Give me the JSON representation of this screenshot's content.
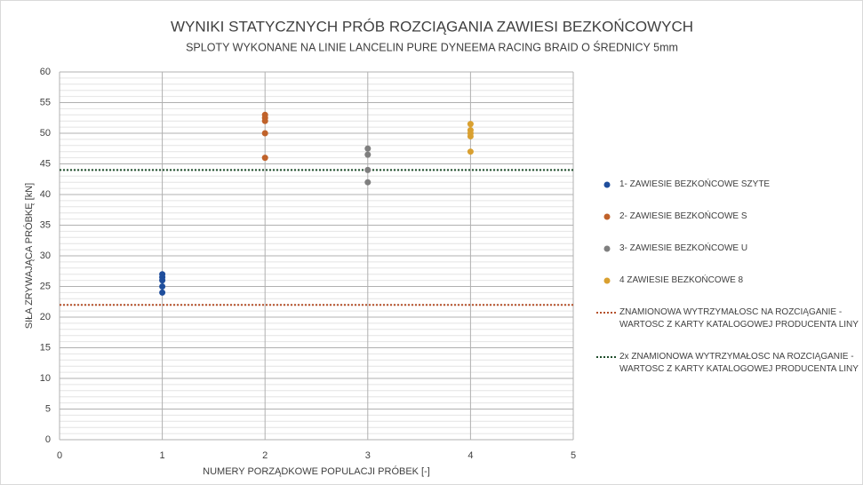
{
  "chart_data": {
    "type": "scatter",
    "title": "WYNIKI STATYCZNYCH PRÓB ROZCIĄGANIA ZAWIESI BEZKOŃCOWYCH",
    "subtitle": "SPLOTY WYKONANE NA LINIE LANCELIN PURE DYNEEMA RACING BRAID O ŚREDNICY 5mm",
    "xlabel": "NUMERY PORZĄDKOWE POPULACJI PRÓBEK [-]",
    "ylabel": "SIŁA ZRYWAJĄCA PRÓBKĘ [kN]",
    "xlim": [
      0,
      5
    ],
    "xticks": [
      0,
      1,
      2,
      3,
      4,
      5
    ],
    "ylim": [
      0,
      60
    ],
    "yticks": [
      0,
      5,
      10,
      15,
      20,
      25,
      30,
      35,
      40,
      45,
      50,
      55,
      60
    ],
    "minor_grid_step": 1,
    "grid": true,
    "legend": "right",
    "series": [
      {
        "name": "1- ZAWIESIE BEZKOŃCOWE SZYTE",
        "color": "#1f4e9c",
        "x": [
          1,
          1,
          1,
          1,
          1
        ],
        "values": [
          27,
          26.5,
          26,
          25,
          24
        ]
      },
      {
        "name": "2- ZAWIESIE BEZKOŃCOWE S",
        "color": "#c0622a",
        "x": [
          2,
          2,
          2,
          2,
          2
        ],
        "values": [
          53,
          52.5,
          52,
          50,
          46
        ]
      },
      {
        "name": "3- ZAWIESIE BEZKOŃCOWE U",
        "color": "#7f7f7f",
        "x": [
          3,
          3,
          3,
          3
        ],
        "values": [
          47.5,
          46.5,
          44,
          42
        ]
      },
      {
        "name": "4  ZAWIESIE BEZKOŃCOWE 8",
        "color": "#d9a030",
        "x": [
          4,
          4,
          4,
          4,
          4
        ],
        "values": [
          51.5,
          50.5,
          50,
          49.5,
          47
        ]
      }
    ],
    "reference_lines": [
      {
        "name": "ZNAMIONOWA WYTRZYMAŁOSC NA ROZCIĄGANIE - WARTOSC Z KARTY KATALOGOWEJ PRODUCENTA LINY",
        "value": 22,
        "color": "#b5502a"
      },
      {
        "name": "2x ZNAMIONOWA WYTRZYMAŁOSC NA ROZCIĄGANIE - WARTOSC Z KARTY KATALOGOWEJ PRODUCENTA LINY",
        "value": 44,
        "color": "#1e4d2b"
      }
    ]
  }
}
